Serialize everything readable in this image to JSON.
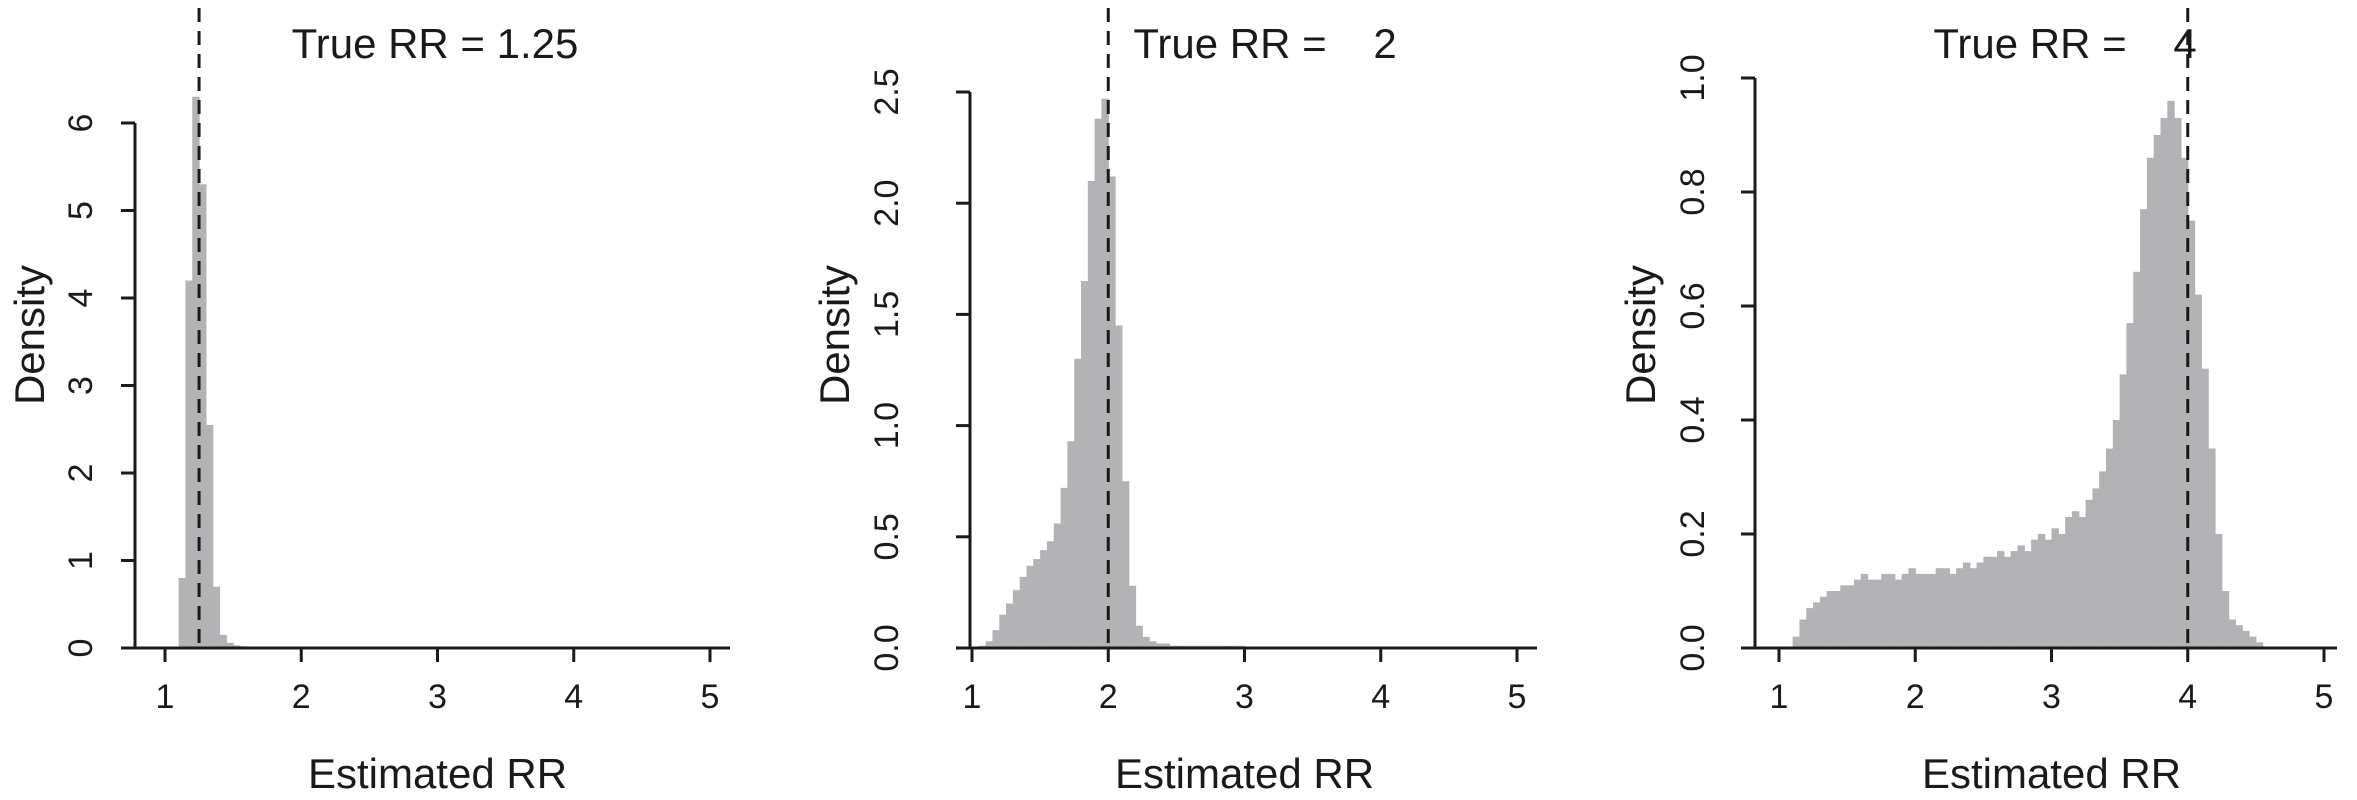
{
  "chart_data": [
    {
      "type": "histogram",
      "title": "True RR = 1.25",
      "xlabel": "Estimated RR",
      "ylabel": "Density",
      "xlim": [
        1,
        5
      ],
      "ylim": [
        0,
        6
      ],
      "xticks": [
        "1",
        "2",
        "3",
        "4",
        "5"
      ],
      "yticks": [
        "0",
        "1",
        "2",
        "3",
        "4",
        "5",
        "6"
      ],
      "true_value": 1.25,
      "bin_width": 0.05,
      "bin_start": 1.1,
      "values": [
        0.8,
        4.2,
        6.3,
        5.3,
        2.55,
        0.7,
        0.15,
        0.06,
        0.03,
        0.02,
        0.01,
        0.01
      ],
      "bar_color": "#b3b3b6",
      "grid": false
    },
    {
      "type": "histogram",
      "title": "True RR =    2",
      "xlabel": "Estimated RR",
      "ylabel": "Density",
      "xlim": [
        1,
        5
      ],
      "ylim": [
        0,
        2.5
      ],
      "xticks": [
        "1",
        "2",
        "3",
        "4",
        "5"
      ],
      "yticks": [
        "0.0",
        "0.5",
        "1.0",
        "1.5",
        "2.0",
        "2.5"
      ],
      "true_value": 2,
      "bin_width": 0.05,
      "bin_start": 1.0,
      "values": [
        0.0,
        0.01,
        0.03,
        0.08,
        0.15,
        0.2,
        0.26,
        0.32,
        0.37,
        0.4,
        0.44,
        0.48,
        0.56,
        0.72,
        0.93,
        1.3,
        1.65,
        2.1,
        2.38,
        2.47,
        2.12,
        1.45,
        0.75,
        0.28,
        0.1,
        0.05,
        0.03,
        0.02,
        0.02,
        0.01,
        0.01,
        0.01,
        0.01,
        0.01,
        0.01,
        0.01,
        0.01,
        0.01,
        0.01,
        0.01
      ],
      "bar_color": "#b3b3b6",
      "grid": false
    },
    {
      "type": "histogram",
      "title": "True RR =    4",
      "xlabel": "Estimated RR",
      "ylabel": "Density",
      "xlim": [
        1,
        5
      ],
      "ylim": [
        0,
        1
      ],
      "xticks": [
        "1",
        "2",
        "3",
        "4",
        "5"
      ],
      "yticks": [
        "0.0",
        "0.2",
        "0.4",
        "0.6",
        "0.8",
        "1.0"
      ],
      "true_value": 4,
      "bin_width": 0.05,
      "bin_start": 1.1,
      "values": [
        0.02,
        0.05,
        0.07,
        0.08,
        0.09,
        0.1,
        0.1,
        0.11,
        0.11,
        0.12,
        0.13,
        0.12,
        0.12,
        0.13,
        0.13,
        0.12,
        0.13,
        0.14,
        0.13,
        0.13,
        0.13,
        0.14,
        0.14,
        0.13,
        0.14,
        0.15,
        0.14,
        0.15,
        0.16,
        0.16,
        0.17,
        0.16,
        0.17,
        0.18,
        0.17,
        0.19,
        0.2,
        0.19,
        0.21,
        0.2,
        0.23,
        0.24,
        0.23,
        0.26,
        0.28,
        0.31,
        0.35,
        0.4,
        0.48,
        0.57,
        0.66,
        0.77,
        0.86,
        0.9,
        0.93,
        0.96,
        0.93,
        0.86,
        0.75,
        0.62,
        0.49,
        0.35,
        0.2,
        0.1,
        0.05,
        0.04,
        0.03,
        0.02,
        0.01,
        0.0
      ],
      "bar_color": "#b3b3b6",
      "grid": false
    }
  ]
}
